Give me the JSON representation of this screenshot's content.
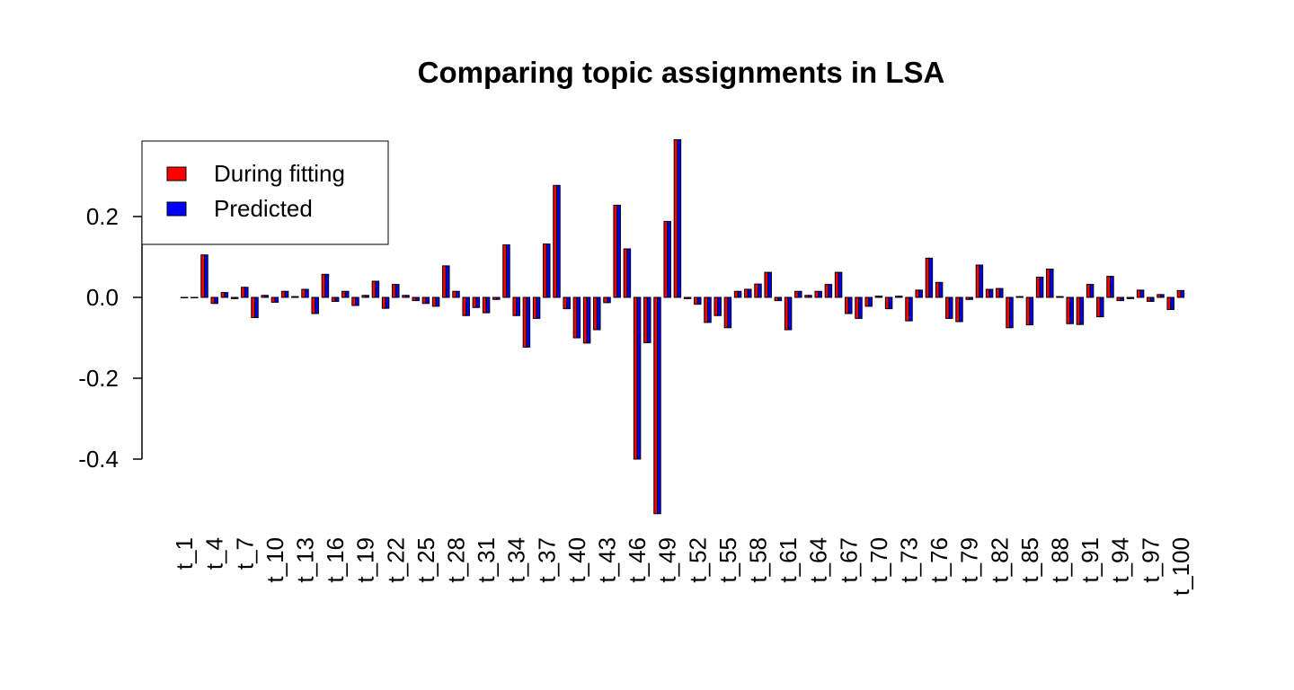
{
  "chart_data": {
    "type": "bar",
    "title": "Comparing topic assignments in LSA",
    "categories": [
      "t_1",
      null,
      null,
      "t_4",
      null,
      null,
      "t_7",
      null,
      null,
      "t_10",
      null,
      null,
      "t_13",
      null,
      null,
      "t_16",
      null,
      null,
      "t_19",
      null,
      null,
      "t_22",
      null,
      null,
      "t_25",
      null,
      null,
      "t_28",
      null,
      null,
      "t_31",
      null,
      null,
      "t_34",
      null,
      null,
      "t_37",
      null,
      null,
      "t_40",
      null,
      null,
      "t_43",
      null,
      null,
      "t_46",
      null,
      null,
      "t_49",
      null,
      null,
      "t_52",
      null,
      null,
      "t_55",
      null,
      null,
      "t_58",
      null,
      null,
      "t_61",
      null,
      null,
      "t_64",
      null,
      null,
      "t_67",
      null,
      null,
      "t_70",
      null,
      null,
      "t_73",
      null,
      null,
      "t_76",
      null,
      null,
      "t_79",
      null,
      null,
      "t_82",
      null,
      null,
      "t_85",
      null,
      null,
      "t_88",
      null,
      null,
      "t_91",
      null,
      null,
      "t_94",
      null,
      null,
      "t_97",
      null,
      null,
      "t_100"
    ],
    "series": [
      {
        "name": "During fitting",
        "color": "#ff0000",
        "values": [
          0,
          0,
          0.105,
          -0.015,
          0.012,
          -0.003,
          0.025,
          -0.05,
          0.005,
          -0.012,
          0.015,
          0.002,
          0.02,
          -0.04,
          0.057,
          -0.01,
          0.015,
          -0.02,
          0.005,
          0.04,
          -0.027,
          0.032,
          0.005,
          -0.008,
          -0.015,
          -0.022,
          0.078,
          0.015,
          -0.045,
          -0.025,
          -0.038,
          -0.005,
          0.13,
          -0.045,
          -0.123,
          -0.052,
          0.132,
          0.277,
          -0.028,
          -0.1,
          -0.113,
          -0.08,
          -0.013,
          0.228,
          0.12,
          -0.4,
          -0.112,
          -0.535,
          0.188,
          0.39,
          -0.003,
          -0.017,
          -0.062,
          -0.045,
          -0.075,
          0.015,
          0.02,
          0.033,
          0.062,
          -0.008,
          -0.08,
          0.015,
          0.005,
          0.015,
          0.032,
          0.062,
          -0.04,
          -0.052,
          -0.022,
          0.003,
          -0.028,
          0.003,
          -0.058,
          0.018,
          0.097,
          0.037,
          -0.052,
          -0.06,
          -0.005,
          0.08,
          0.02,
          0.022,
          -0.075,
          0.002,
          -0.068,
          0.05,
          0.07,
          0.002,
          -0.065,
          -0.067,
          0.032,
          -0.048,
          0.052,
          -0.008,
          -0.003,
          0.018,
          -0.01,
          0.007,
          -0.03,
          0.017
        ]
      },
      {
        "name": "Predicted",
        "color": "#0000ff",
        "values": [
          0,
          0,
          0.105,
          -0.015,
          0.012,
          -0.003,
          0.025,
          -0.05,
          0.005,
          -0.012,
          0.015,
          0.002,
          0.02,
          -0.04,
          0.057,
          -0.01,
          0.015,
          -0.02,
          0.005,
          0.04,
          -0.027,
          0.032,
          0.005,
          -0.008,
          -0.015,
          -0.022,
          0.078,
          0.015,
          -0.045,
          -0.025,
          -0.038,
          -0.005,
          0.13,
          -0.045,
          -0.123,
          -0.052,
          0.132,
          0.277,
          -0.028,
          -0.1,
          -0.113,
          -0.08,
          -0.013,
          0.228,
          0.12,
          -0.4,
          -0.112,
          -0.535,
          0.188,
          0.39,
          -0.003,
          -0.017,
          -0.062,
          -0.045,
          -0.075,
          0.015,
          0.02,
          0.033,
          0.062,
          -0.008,
          -0.08,
          0.015,
          0.005,
          0.015,
          0.032,
          0.062,
          -0.04,
          -0.052,
          -0.022,
          0.003,
          -0.028,
          0.003,
          -0.058,
          0.018,
          0.097,
          0.037,
          -0.052,
          -0.06,
          -0.005,
          0.08,
          0.02,
          0.022,
          -0.075,
          0.002,
          -0.068,
          0.05,
          0.07,
          0.002,
          -0.065,
          -0.067,
          0.032,
          -0.048,
          0.052,
          -0.008,
          -0.003,
          0.018,
          -0.01,
          0.007,
          -0.03,
          0.017
        ]
      }
    ],
    "ylim": [
      -0.535,
      0.39
    ],
    "yticks": [
      -0.4,
      -0.2,
      {
        "value": 0,
        "label": "0.0"
      },
      0.2
    ],
    "legend": "top-left"
  }
}
